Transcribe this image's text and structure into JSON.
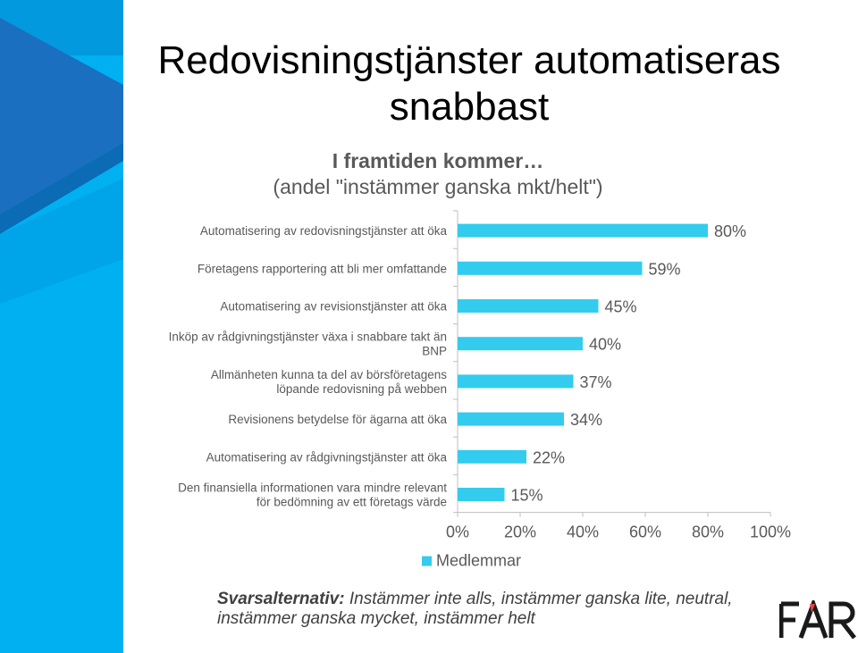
{
  "slide": {
    "title": "Redovisningstjänster automatiseras snabbast",
    "subtitle_bold": "I framtiden kommer…",
    "subtitle": "(andel \"instämmer ganska mkt/helt\")",
    "footnote_label": "Svarsalternativ:",
    "footnote_text": " Instämmer inte alls, instämmer ganska lite, neutral, instämmer ganska mycket, instämmer helt",
    "logo_text": "FAR"
  },
  "colors": {
    "bar": "#33ccee",
    "band_light": "#00b0f0",
    "band_dark": "#0070c0",
    "title": "#000000",
    "text": "#595959",
    "logo": "#1a1a1a",
    "logo_accent": "#e8423f"
  },
  "chart_data": {
    "type": "bar",
    "orientation": "horizontal",
    "categories": [
      [
        "Automatisering av redovisningstjänster att öka"
      ],
      [
        "Företagens rapportering att bli mer omfattande"
      ],
      [
        "Automatisering av revisionstjänster att öka"
      ],
      [
        "Inköp av rådgivningstjänster växa i snabbare takt än",
        "BNP"
      ],
      [
        "Allmänheten kunna ta del av börsföretagens",
        "löpande redovisning på webben"
      ],
      [
        "Revisionens betydelse för ägarna att öka"
      ],
      [
        "Automatisering av rådgivningstjänster att öka"
      ],
      [
        "Den finansiella informationen vara mindre relevant",
        "för bedömning av ett företags värde"
      ]
    ],
    "series": [
      {
        "name": "Medlemmar",
        "values": [
          80,
          59,
          45,
          40,
          37,
          34,
          22,
          15
        ]
      }
    ],
    "data_labels": [
      "80%",
      "59%",
      "45%",
      "40%",
      "37%",
      "34%",
      "22%",
      "15%"
    ],
    "x_ticks": [
      "0%",
      "20%",
      "40%",
      "60%",
      "80%",
      "100%"
    ],
    "xlim": [
      0,
      100
    ],
    "grid": false,
    "legend": "bottom"
  }
}
